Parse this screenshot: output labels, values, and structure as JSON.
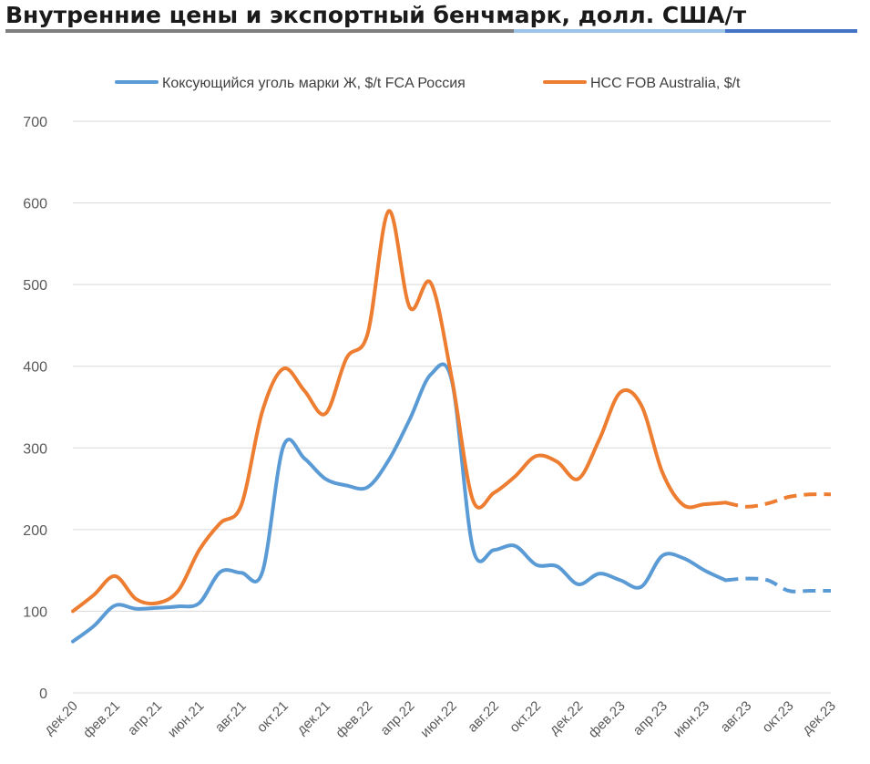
{
  "title": "Внутренние цены и экспортный бенчмарк, долл. США/т",
  "colors": {
    "series_blue": "#5b9bd5",
    "series_orange": "#ed7d31",
    "grid": "#d9d9d9",
    "rule_left": "#7f7f7f",
    "rule_mid": "#9dc3e6",
    "rule_right": "#4472c4"
  },
  "chart_data": {
    "type": "line",
    "ylim": [
      0,
      700
    ],
    "yticks": [
      0,
      100,
      200,
      300,
      400,
      500,
      600,
      700
    ],
    "grid": true,
    "legend_position": "top",
    "x": [
      "дек.20",
      "янв.21",
      "фев.21",
      "мар.21",
      "апр.21",
      "май.21",
      "июн.21",
      "июл.21",
      "авг.21",
      "сен.21",
      "окт.21",
      "ноя.21",
      "дек.21",
      "янв.22",
      "фев.22",
      "мар.22",
      "апр.22",
      "май.22",
      "июн.22",
      "июл.22",
      "авг.22",
      "сен.22",
      "окт.22",
      "ноя.22",
      "дек.22",
      "янв.23",
      "фев.23",
      "мар.23",
      "апр.23",
      "май.23",
      "июн.23",
      "июл.23",
      "авг.23",
      "сен.23",
      "окт.23",
      "ноя.23",
      "дек.23"
    ],
    "xtick_labels": [
      "дек.20",
      "фев.21",
      "апр.21",
      "июн.21",
      "авг.21",
      "окт.21",
      "дек.21",
      "фев.22",
      "апр.22",
      "июн.22",
      "авг.22",
      "окт.22",
      "дек.22",
      "фев.23",
      "апр.23",
      "июн.23",
      "авг.23",
      "окт.23",
      "дек.23"
    ],
    "series": [
      {
        "name": "Коксующийся уголь марки Ж, $/t FCA Россия",
        "color": "#5b9bd5",
        "values": [
          63,
          82,
          107,
          103,
          104,
          106,
          110,
          148,
          147,
          148,
          302,
          287,
          262,
          254,
          252,
          285,
          335,
          390,
          382,
          177,
          175,
          180,
          157,
          155,
          133,
          146,
          138,
          130,
          168,
          165,
          150,
          138,
          140,
          138,
          125,
          125,
          125
        ],
        "dashed_from_index": 31
      },
      {
        "name": "HCC FOB Australia, $/t",
        "color": "#ed7d31",
        "values": [
          100,
          120,
          143,
          115,
          110,
          125,
          175,
          208,
          230,
          345,
          397,
          370,
          342,
          410,
          440,
          590,
          472,
          502,
          385,
          236,
          245,
          265,
          290,
          283,
          262,
          310,
          368,
          352,
          270,
          230,
          231,
          233,
          228,
          232,
          240,
          243,
          243
        ],
        "dashed_from_index": 31
      }
    ]
  }
}
